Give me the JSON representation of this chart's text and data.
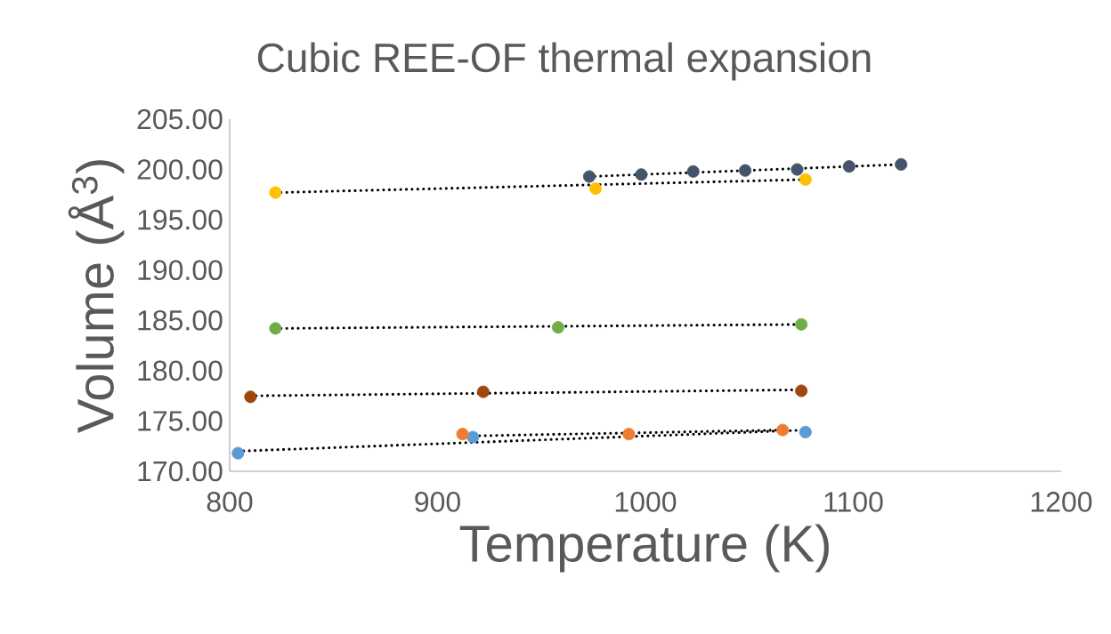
{
  "chart_data": {
    "type": "scatter",
    "title": "Cubic REE-OF thermal expansion",
    "xlabel": "Temperature (K)",
    "ylabel": "Volume (Å$^{3}$)",
    "xlim": [
      800,
      1200
    ],
    "xticks": [
      800,
      900,
      1000,
      1100,
      1200
    ],
    "ylim": [
      170,
      205
    ],
    "yticks": [
      {
        "value": 170,
        "label": "170.00"
      },
      {
        "value": 175,
        "label": "175.00"
      },
      {
        "value": 180,
        "label": "180.00"
      },
      {
        "value": 185,
        "label": "185.00"
      },
      {
        "value": 190,
        "label": "190.00"
      },
      {
        "value": 195,
        "label": "195.00"
      },
      {
        "value": 200,
        "label": "200.00"
      },
      {
        "value": 205,
        "label": "205.00"
      }
    ],
    "grid": false,
    "marker": "circle",
    "series": [
      {
        "type": "line",
        "color": "#000000",
        "line_style": "dotted",
        "marker": "none",
        "x": [
          973,
          1123
        ],
        "values": [
          199.3,
          200.5
        ]
      },
      {
        "type": "line",
        "color": "#000000",
        "line_style": "dotted",
        "marker": "none",
        "x": [
          822,
          1077
        ],
        "values": [
          197.7,
          199.0
        ]
      },
      {
        "type": "line",
        "color": "#000000",
        "line_style": "dotted",
        "marker": "none",
        "x": [
          822,
          1075
        ],
        "values": [
          184.2,
          184.6
        ]
      },
      {
        "type": "line",
        "color": "#000000",
        "line_style": "dotted",
        "marker": "none",
        "x": [
          810,
          1075
        ],
        "values": [
          177.5,
          178.1
        ]
      },
      {
        "type": "line",
        "color": "#000000",
        "line_style": "dotted",
        "marker": "none",
        "x": [
          804,
          1077
        ],
        "values": [
          172.0,
          174.1
        ]
      },
      {
        "type": "line",
        "color": "#000000",
        "line_style": "dotted",
        "marker": "none",
        "x": [
          912,
          1066
        ],
        "values": [
          173.5,
          174.1
        ]
      },
      {
        "color": "#44546a",
        "x": [
          973,
          998,
          1023,
          1048,
          1073,
          1098,
          1123
        ],
        "values": [
          199.3,
          199.5,
          199.8,
          199.9,
          200.0,
          200.3,
          200.5
        ]
      },
      {
        "color": "#ffc000",
        "x": [
          822,
          976,
          1077
        ],
        "values": [
          197.7,
          198.1,
          199.0
        ]
      },
      {
        "color": "#70ad47",
        "x": [
          822,
          958,
          1075
        ],
        "values": [
          184.2,
          184.3,
          184.6
        ]
      },
      {
        "color": "#9e480e",
        "x": [
          810,
          922,
          1075
        ],
        "values": [
          177.4,
          177.9,
          178.0
        ]
      },
      {
        "color": "#5b9bd5",
        "x": [
          804,
          917,
          1077
        ],
        "values": [
          171.8,
          173.4,
          173.9
        ]
      },
      {
        "color": "#ed7d31",
        "x": [
          912,
          992,
          1066
        ],
        "values": [
          173.7,
          173.7,
          174.1
        ]
      }
    ]
  }
}
